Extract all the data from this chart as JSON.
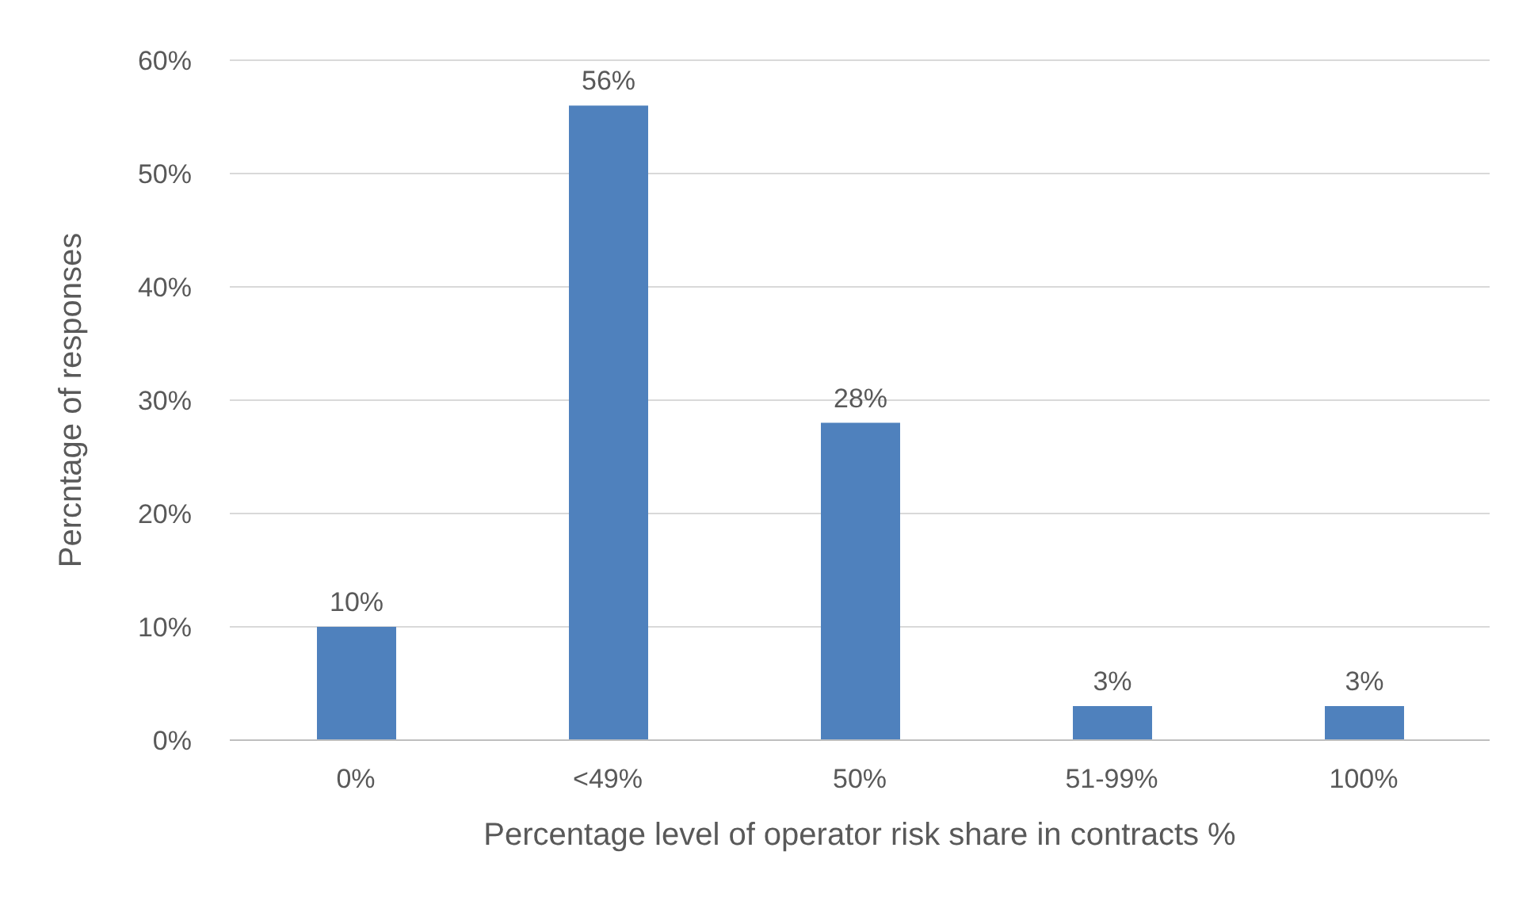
{
  "chart_data": {
    "type": "bar",
    "xlabel": "Percentage level of operator risk share in contracts %",
    "ylabel": "Percntage of responses",
    "categories": [
      "0%",
      "<49%",
      "50%",
      "51-99%",
      "100%"
    ],
    "values": [
      10,
      56,
      28,
      3,
      3
    ],
    "color": "#4f81bd",
    "ylim": [
      0,
      60
    ],
    "yticks": [
      {
        "value": 0,
        "label": "0%"
      },
      {
        "value": 10,
        "label": "10%"
      },
      {
        "value": 20,
        "label": "20%"
      },
      {
        "value": 30,
        "label": "30%"
      },
      {
        "value": 40,
        "label": "40%"
      },
      {
        "value": 50,
        "label": "50%"
      },
      {
        "value": 60,
        "label": "60%"
      }
    ],
    "value_labels": [
      "10%",
      "56%",
      "28%",
      "3%",
      "3%"
    ],
    "grid": "y"
  }
}
